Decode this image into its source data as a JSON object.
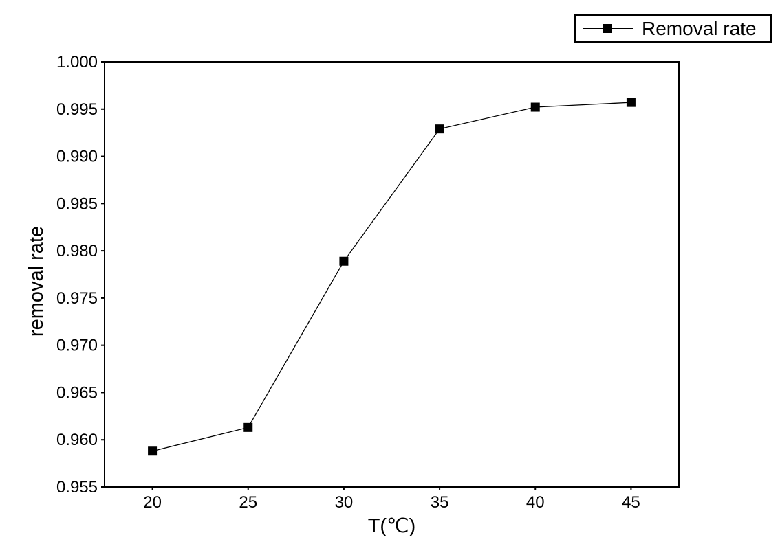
{
  "figure": {
    "background_color": "#ffffff",
    "foreground_color": "#000000"
  },
  "legend": {
    "label": "Removal rate",
    "marker": "filled-square-on-line"
  },
  "chart_data": {
    "type": "line",
    "title": "",
    "xlabel": "T(℃)",
    "ylabel": "removal rate",
    "x": [
      20,
      25,
      30,
      35,
      40,
      45
    ],
    "series": [
      {
        "name": "Removal rate",
        "values": [
          0.9588,
          0.9613,
          0.9789,
          0.9929,
          0.9952,
          0.9957
        ],
        "color": "#000000",
        "marker": "square"
      }
    ],
    "xlim": [
      17.5,
      47.5
    ],
    "ylim": [
      0.955,
      1.0
    ],
    "xticks": [
      20,
      25,
      30,
      35,
      40,
      45
    ],
    "xtick_labels": [
      "20",
      "25",
      "30",
      "35",
      "40",
      "45"
    ],
    "yticks": [
      0.955,
      0.96,
      0.965,
      0.97,
      0.975,
      0.98,
      0.985,
      0.99,
      0.995,
      1.0
    ],
    "ytick_decimals": 3,
    "grid": false,
    "legend_position": "top-right-outside",
    "line_color": "#000000",
    "marker_color": "#000000"
  }
}
